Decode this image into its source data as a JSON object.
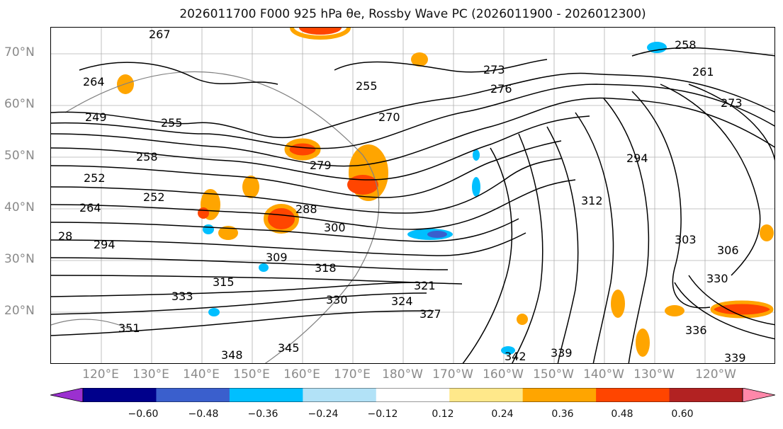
{
  "title": "2026011700 F000 925 hPa θe, Rossby Wave PC (2026011900 - 2026012300)",
  "map": {
    "lat_labels": [
      "70°N",
      "60°N",
      "50°N",
      "40°N",
      "30°N",
      "20°N"
    ],
    "lon_labels": [
      "120°E",
      "130°E",
      "140°E",
      "150°E",
      "160°E",
      "170°E",
      "180°W",
      "170°W",
      "160°W",
      "150°W",
      "140°W",
      "130°W",
      "120°W"
    ],
    "contour_labels": [
      "267",
      "264",
      "249",
      "252",
      "255",
      "258",
      "252",
      "264",
      "28",
      "294",
      "279",
      "288",
      "300",
      "309",
      "315",
      "318",
      "321",
      "324",
      "327",
      "330",
      "333",
      "336",
      "339",
      "342",
      "345",
      "348",
      "351",
      "255",
      "270",
      "273",
      "276",
      "294",
      "312",
      "303",
      "306",
      "258",
      "261",
      "273",
      "339",
      "330"
    ]
  },
  "colorbar": {
    "ticks": [
      "−0.60",
      "−0.48",
      "−0.36",
      "−0.24",
      "−0.12",
      "0.12",
      "0.24",
      "0.36",
      "0.48",
      "0.60"
    ],
    "colors": [
      "#9b30d0",
      "#00008b",
      "#3a5fcd",
      "#00bfff",
      "#b2e2f7",
      "#ffffff",
      "#ffe88a",
      "#ffa500",
      "#ff4500",
      "#b22222",
      "#ff88aa"
    ]
  }
}
